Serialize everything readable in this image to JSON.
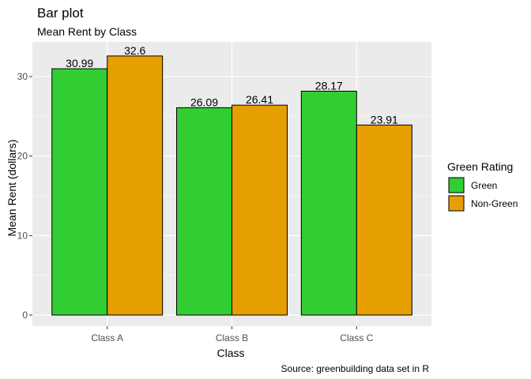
{
  "chart_data": {
    "type": "bar",
    "title": "Bar plot",
    "subtitle": "Mean Rent by Class",
    "xlabel": "Class",
    "ylabel": "Mean Rent (dollars)",
    "caption": "Source: greenbuilding data set in R",
    "categories": [
      "Class A",
      "Class B",
      "Class C"
    ],
    "series": [
      {
        "name": "Green",
        "color": "#32cd32",
        "values": [
          30.99,
          26.09,
          28.17
        ],
        "labels": [
          "30.99",
          "26.09",
          "28.17"
        ]
      },
      {
        "name": "Non-Green",
        "color": "#e69f00",
        "values": [
          32.6,
          26.41,
          23.91
        ],
        "labels": [
          "32.6",
          "26.41",
          "23.91"
        ]
      }
    ],
    "ylim": [
      0,
      33.9
    ],
    "yticks": [
      0,
      10,
      20,
      30
    ],
    "yticks_labels": [
      "0",
      "10",
      "20",
      "30"
    ],
    "grid": true,
    "legend": {
      "title": "Green Rating",
      "position": "right"
    },
    "panel_color": "#ebebeb"
  }
}
